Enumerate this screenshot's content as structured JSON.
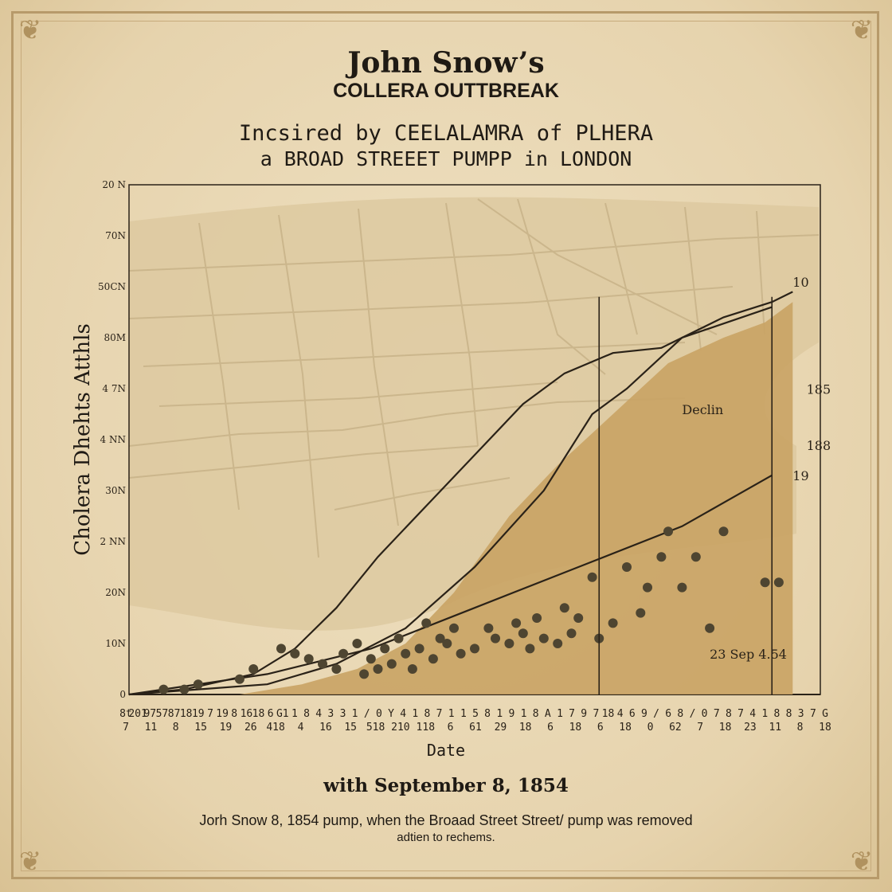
{
  "header": {
    "title": "John  Snow’s",
    "subtitle": "COLLERA OUTTBREAK",
    "caption_line1": "Incsired by CEELALAMRA of  PLHERA",
    "caption_line2": "a BROAD STREEET PUMPP in  LONDON"
  },
  "footer": {
    "title": "with September 8, 1854",
    "note_line1": "Jorh Snow  8, 1854 pump, when the Broaad Street Street/  pump was removed",
    "note_line2": "adtien to rechems."
  },
  "chart_data": {
    "type": "area",
    "title": "John  Snow’s",
    "subtitle": "COLLERA OUTTBREAK",
    "xlabel": "Date",
    "ylabel": "Cholera Dhehts Atthls",
    "y_tick_labels": [
      "0",
      "10N",
      "20N",
      "2 NN",
      "30N",
      "4 NN",
      "4 7N",
      "80M",
      "50CN",
      "70N",
      "20 N"
    ],
    "x_tick_labels_row1": [
      "8t",
      "201",
      "97",
      "57",
      "87",
      "18",
      "19",
      "7",
      "19",
      "8",
      "16",
      "18",
      "6",
      "G1",
      "1",
      "8",
      "4",
      "3",
      "3",
      "1",
      "/",
      "0",
      "Y",
      "4",
      "1",
      "8",
      "7",
      "1",
      "1",
      "5",
      "8",
      "1",
      "9",
      "1",
      "8",
      "A",
      "1",
      "7",
      "9",
      "7",
      "18",
      "4",
      "6",
      "9",
      "/",
      "6",
      "8",
      "/",
      "0",
      "7",
      "8",
      "7",
      "4",
      "1",
      "8",
      "8",
      "3",
      "7",
      "G"
    ],
    "x_tick_labels_row2": [
      "7",
      "11",
      "8",
      "15",
      "19",
      "26",
      "418",
      "4",
      "16",
      "15",
      "518",
      "210",
      "118",
      "6",
      "61",
      "29",
      "18",
      "6",
      "18",
      "6",
      "18",
      "0",
      "62",
      "7",
      "18",
      "23",
      "11",
      "8",
      "18"
    ],
    "x_range": [
      0,
      100
    ],
    "y_range": [
      0,
      100
    ],
    "series": [
      {
        "name": "",
        "style": "line",
        "x": [
          0,
          8,
          18,
          24,
          30,
          36,
          43,
          50,
          57,
          63,
          70,
          77,
          80,
          86,
          93,
          96
        ],
        "y": [
          0,
          1,
          4,
          9,
          17,
          27,
          37,
          47,
          57,
          63,
          67,
          68,
          70,
          74,
          77,
          79
        ]
      },
      {
        "name": "",
        "style": "line",
        "x": [
          0,
          20,
          30,
          40,
          50,
          60,
          67,
          72,
          80,
          93
        ],
        "y": [
          0,
          2,
          6,
          13,
          25,
          40,
          55,
          60,
          70,
          76
        ]
      },
      {
        "name": "",
        "style": "area",
        "x": [
          16,
          25,
          33,
          40,
          47,
          55,
          62,
          70,
          78,
          86,
          92,
          96,
          96,
          16
        ],
        "y": [
          0,
          2,
          5,
          10,
          20,
          35,
          45,
          55,
          65,
          70,
          73,
          77,
          0,
          0
        ],
        "color": "#c9a364"
      },
      {
        "name": "",
        "style": "line",
        "x": [
          0,
          20,
          35,
          50,
          65,
          80,
          93
        ],
        "y": [
          0,
          4,
          9,
          17,
          25,
          33,
          43
        ]
      }
    ],
    "scatter_points": {
      "x": [
        5,
        8,
        10,
        16,
        18,
        22,
        24,
        26,
        28,
        30,
        31,
        33,
        34,
        35,
        36,
        37,
        38,
        39,
        40,
        41,
        42,
        43,
        44,
        45,
        46,
        47,
        48,
        50,
        52,
        53,
        55,
        56,
        57,
        58,
        59,
        60,
        62,
        63,
        64,
        65,
        67,
        68,
        70,
        72,
        74,
        75,
        77,
        78,
        80,
        82,
        84,
        86,
        92,
        94
      ],
      "y": [
        1,
        1,
        2,
        3,
        5,
        9,
        8,
        7,
        6,
        5,
        8,
        10,
        4,
        7,
        5,
        9,
        6,
        11,
        8,
        5,
        9,
        14,
        7,
        11,
        10,
        13,
        8,
        9,
        13,
        11,
        10,
        14,
        12,
        9,
        15,
        11,
        10,
        17,
        12,
        15,
        23,
        11,
        14,
        25,
        16,
        21,
        27,
        32,
        21,
        27,
        13,
        32,
        22,
        22
      ],
      "color": "#4e4531"
    },
    "background_map": true,
    "annotations": [
      {
        "text": "Declin",
        "x": 80,
        "y": 55
      },
      {
        "text": "185",
        "x": 98,
        "y": 59
      },
      {
        "text": "188",
        "x": 98,
        "y": 48
      },
      {
        "text": "19",
        "x": 96,
        "y": 42
      },
      {
        "text": "10",
        "x": 96,
        "y": 80
      },
      {
        "text": "23 Sep 4.54",
        "x": 84,
        "y": 7
      }
    ],
    "reference_lines_x": [
      68,
      93
    ],
    "grid": false
  }
}
